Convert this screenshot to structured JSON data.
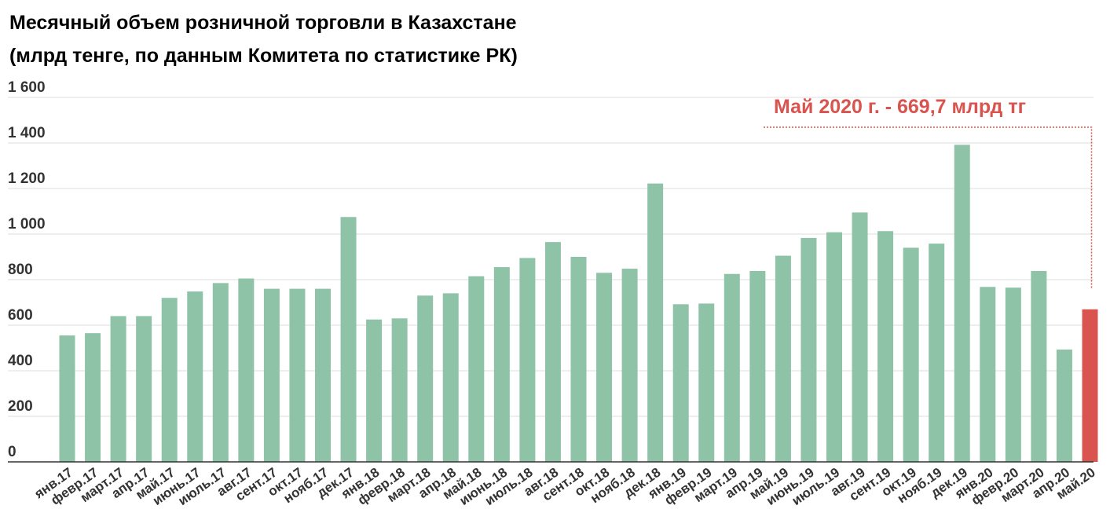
{
  "chart_data": {
    "type": "bar",
    "title_line1": "Месячный объем розничной торговли в Казахстане",
    "title_line2": "(млрд тенге, по данным Комитета по статистике РК)",
    "xlabel": "",
    "ylabel": "",
    "ylim": [
      0,
      1600
    ],
    "yticks": [
      0,
      200,
      400,
      600,
      800,
      1000,
      1200,
      1400,
      1600
    ],
    "ytick_labels": [
      "0",
      "200",
      "400",
      "600",
      "800",
      "1 000",
      "1 200",
      "1 400",
      "1 600"
    ],
    "grid": true,
    "categories": [
      "янв.17",
      "февр.17",
      "март.17",
      "апр.17",
      "май.17",
      "июнь.17",
      "июль.17",
      "авг.17",
      "сент.17",
      "окт.17",
      "нояб.17",
      "дек.17",
      "янв.18",
      "февр.18",
      "март.18",
      "апр.18",
      "май.18",
      "июнь.18",
      "июль.18",
      "авг.18",
      "сент.18",
      "окт.18",
      "нояб.18",
      "дек.18",
      "янв.19",
      "февр.19",
      "март.19",
      "апр.19",
      "май.19",
      "июнь.19",
      "июль.19",
      "авг.19",
      "сент.19",
      "окт.19",
      "нояб.19",
      "дек.19",
      "янв.20",
      "февр.20",
      "март.20",
      "апр.20",
      "май.20"
    ],
    "values": [
      555,
      565,
      640,
      640,
      720,
      748,
      785,
      805,
      760,
      760,
      760,
      1075,
      625,
      630,
      730,
      740,
      815,
      855,
      895,
      965,
      900,
      830,
      848,
      1222,
      692,
      695,
      825,
      838,
      905,
      983,
      1008,
      1095,
      1013,
      940,
      958,
      1392,
      768,
      765,
      838,
      493,
      669.7
    ],
    "highlight_index": 40,
    "annotation": "Май 2020 г. - 669,7 млрд тг",
    "colors": {
      "bar": "#8ec3a7",
      "highlight": "#d9534f",
      "annotation": "#d9534f",
      "grid": "#dddddd",
      "baseline": "#333333",
      "tick_text": "#333333"
    }
  }
}
